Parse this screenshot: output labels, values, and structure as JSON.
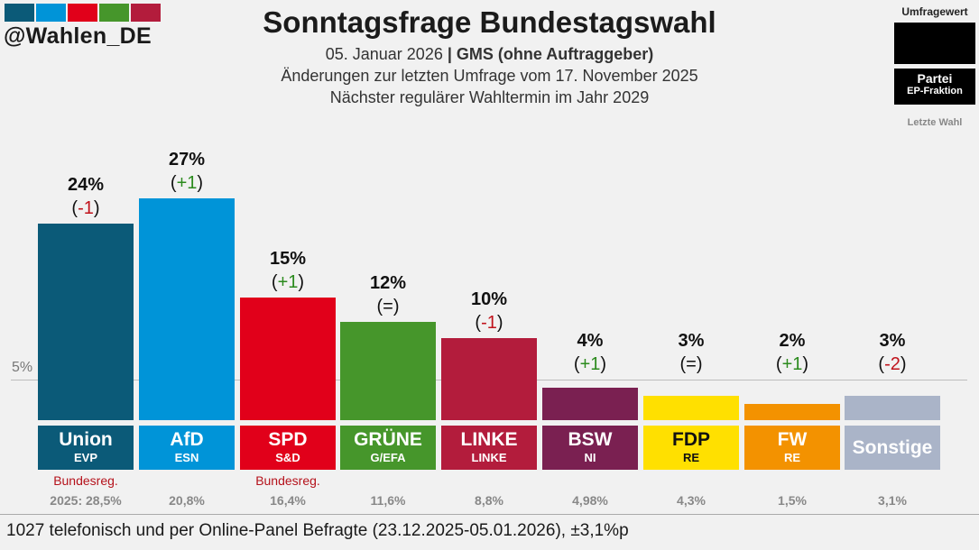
{
  "header": {
    "handle": "@Wahlen_DE",
    "logo_colors": [
      "#0b5a78",
      "#0094d8",
      "#e1001a",
      "#46962b",
      "#b31c3c"
    ],
    "title": "Sonntagsfrage Bundestagswahl",
    "date": "05. Januar 2026",
    "separator": "|",
    "institute": "GMS (ohne Auftraggeber)",
    "changes_note": "Änderungen zur letzten Umfrage vom 17. November 2025",
    "next_election": "Nächster regulärer Wahltermin im Jahr 2029"
  },
  "legend": {
    "value_label": "Umfragewert",
    "party_label": "Partei",
    "fraction_label": "EP-Fraktion",
    "last_election_label": "Letzte Wahl"
  },
  "threshold_label": "5%",
  "footer": "1027 telefonisch und per Online-Panel Befragte (23.12.2025-05.01.2026), ±3,1%p",
  "chart_data": {
    "type": "bar",
    "title": "Sonntagsfrage Bundestagswahl",
    "categories": [
      "Union",
      "AfD",
      "SPD",
      "GRÜNE",
      "LINKE",
      "BSW",
      "FDP",
      "FW",
      "Sonstige"
    ],
    "values": [
      24,
      27,
      15,
      12,
      10,
      4,
      3,
      2,
      3
    ],
    "threshold": 5,
    "ylim": [
      0,
      27
    ],
    "parties": [
      {
        "name": "Union",
        "fraction": "EVP",
        "value": 24,
        "label": "24%",
        "change_prefix": "(",
        "change": "-1",
        "change_suffix": ")",
        "change_color": "#c0121b",
        "color": "#0b5a78",
        "name_color": "#ffffff",
        "gov": "Bundesreg.",
        "last": "2025: 28,5%"
      },
      {
        "name": "AfD",
        "fraction": "ESN",
        "value": 27,
        "label": "27%",
        "change_prefix": "(",
        "change": "+1",
        "change_suffix": ")",
        "change_color": "#2b8a1d",
        "color": "#0094d8",
        "name_color": "#ffffff",
        "gov": "",
        "last": "20,8%"
      },
      {
        "name": "SPD",
        "fraction": "S&D",
        "value": 15,
        "label": "15%",
        "change_prefix": "(",
        "change": "+1",
        "change_suffix": ")",
        "change_color": "#2b8a1d",
        "color": "#e1001a",
        "name_color": "#ffffff",
        "gov": "Bundesreg.",
        "last": "16,4%"
      },
      {
        "name": "GRÜNE",
        "fraction": "G/EFA",
        "value": 12,
        "label": "12%",
        "change_prefix": "(",
        "change": "=",
        "change_suffix": ")",
        "change_color": "#111111",
        "color": "#46962b",
        "name_color": "#ffffff",
        "gov": "",
        "last": "11,6%"
      },
      {
        "name": "LINKE",
        "fraction": "LINKE",
        "value": 10,
        "label": "10%",
        "change_prefix": "(",
        "change": "-1",
        "change_suffix": ")",
        "change_color": "#c0121b",
        "color": "#b31c3c",
        "name_color": "#ffffff",
        "gov": "",
        "last": "8,8%"
      },
      {
        "name": "BSW",
        "fraction": "NI",
        "value": 4,
        "label": "4%",
        "change_prefix": "(",
        "change": "+1",
        "change_suffix": ")",
        "change_color": "#2b8a1d",
        "color": "#7a2051",
        "name_color": "#ffffff",
        "gov": "",
        "last": "4,98%"
      },
      {
        "name": "FDP",
        "fraction": "RE",
        "value": 3,
        "label": "3%",
        "change_prefix": "(",
        "change": "=",
        "change_suffix": ")",
        "change_color": "#111111",
        "color": "#ffe000",
        "name_color": "#111111",
        "gov": "",
        "last": "4,3%"
      },
      {
        "name": "FW",
        "fraction": "RE",
        "value": 2,
        "label": "2%",
        "change_prefix": "(",
        "change": "+1",
        "change_suffix": ")",
        "change_color": "#2b8a1d",
        "color": "#f39200",
        "name_color": "#ffffff",
        "gov": "",
        "last": "1,5%"
      },
      {
        "name": "Sonstige",
        "fraction": "",
        "value": 3,
        "label": "3%",
        "change_prefix": "(",
        "change": "-2",
        "change_suffix": ")",
        "change_color": "#c0121b",
        "color": "#aab4c8",
        "name_color": "#ffffff",
        "gov": "",
        "last": "3,1%"
      }
    ]
  }
}
